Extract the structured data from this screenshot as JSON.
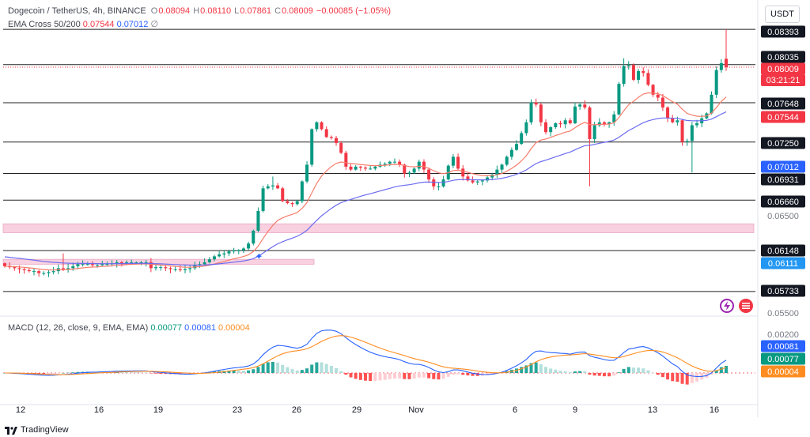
{
  "header": {
    "symbol": "Dogecoin / TetherUS, 4h, BINANCE",
    "o_label": "O",
    "o_val": "0.08094",
    "h_label": "H",
    "h_val": "0.08110",
    "l_label": "L",
    "l_val": "0.07861",
    "c_label": "C",
    "c_val": "0.08009",
    "change": "−0.00085 (−1.05%)",
    "ema_label": "EMA Cross 50/200",
    "ema_fast": "0.07544",
    "ema_slow": "0.07012",
    "ema_extra": "∅"
  },
  "currency_button": "USDT",
  "macd_header": {
    "label": "MACD (12, 26, close, 9, EMA, EMA)",
    "hist": "0.00077",
    "macd": "0.00081",
    "signal": "0.00004"
  },
  "brand": "TradingView",
  "colors": {
    "up": "#089981",
    "down": "#f23645",
    "ema_fast": "#f77c6b",
    "ema_slow": "#6b6bf0",
    "zone": "#f8d0e0",
    "macd": "#2962ff",
    "signal": "#ff8c21"
  },
  "icons": [
    "lightning-icon",
    "flag-icon",
    "tradingview-logo-icon"
  ],
  "chart_data": [
    {
      "type": "candlestick",
      "title": "Dogecoin / TetherUS, 4h, BINANCE",
      "x_tick_labels": [
        "12",
        "16",
        "19",
        "23",
        "26",
        "29",
        "Nov",
        "6",
        "9",
        "13",
        "16"
      ],
      "y_tick_labels": [
        "0.08393",
        "0.08035",
        "0.08009",
        "0.07648",
        "0.07544",
        "0.07250",
        "0.07012",
        "0.06931",
        "0.06660",
        "0.06500",
        "0.06148",
        "0.06111",
        "0.05733",
        "0.05500"
      ],
      "ylim": [
        0.055,
        0.0845
      ],
      "horizontal_levels": [
        0.08393,
        0.08035,
        0.07648,
        0.0725,
        0.06931,
        0.0666,
        0.06148,
        0.05733
      ],
      "zones": [
        [
          0.0633,
          0.0642
        ],
        [
          0.0601,
          0.0606
        ]
      ],
      "last_price": 0.08009,
      "countdown": "03:21:21",
      "closes": [
        0.0599,
        0.0598,
        0.0597,
        0.0596,
        0.0595,
        0.0594,
        0.0594,
        0.0592,
        0.0592,
        0.0593,
        0.0594,
        0.0597,
        0.0596,
        0.0597,
        0.0599,
        0.0601,
        0.0601,
        0.0601,
        0.06,
        0.06,
        0.0601,
        0.0601,
        0.0602,
        0.0603,
        0.0602,
        0.0603,
        0.0603,
        0.0603,
        0.0603,
        0.0603,
        0.0597,
        0.0598,
        0.0598,
        0.0597,
        0.0596,
        0.0596,
        0.0595,
        0.0596,
        0.0597,
        0.06,
        0.0601,
        0.0603,
        0.0606,
        0.0609,
        0.0611,
        0.0612,
        0.0614,
        0.0615,
        0.0615,
        0.0617,
        0.0622,
        0.0635,
        0.0655,
        0.0678,
        0.068,
        0.0681,
        0.0678,
        0.0665,
        0.0663,
        0.0662,
        0.0665,
        0.0685,
        0.0702,
        0.0738,
        0.0745,
        0.0738,
        0.073,
        0.0729,
        0.0724,
        0.0714,
        0.07,
        0.0697,
        0.07,
        0.0699,
        0.0698,
        0.0698,
        0.07,
        0.0702,
        0.0703,
        0.0705,
        0.0705,
        0.0702,
        0.0693,
        0.0694,
        0.0698,
        0.0705,
        0.0697,
        0.0687,
        0.068,
        0.068,
        0.0687,
        0.0701,
        0.071,
        0.0698,
        0.069,
        0.0686,
        0.0684,
        0.0685,
        0.0686,
        0.0689,
        0.0692,
        0.0697,
        0.0702,
        0.071,
        0.0717,
        0.0723,
        0.0734,
        0.0745,
        0.0765,
        0.0763,
        0.0745,
        0.0735,
        0.074,
        0.0744,
        0.0743,
        0.0747,
        0.0744,
        0.0761,
        0.0763,
        0.076,
        0.0728,
        0.0742,
        0.0745,
        0.0743,
        0.0745,
        0.0753,
        0.0784,
        0.0802,
        0.0803,
        0.0788,
        0.0797,
        0.0795,
        0.0783,
        0.0773,
        0.077,
        0.076,
        0.0749,
        0.0745,
        0.0747,
        0.0725,
        0.0726,
        0.0742,
        0.0744,
        0.0749,
        0.0754,
        0.0773,
        0.0798,
        0.0805,
        0.0801
      ]
    },
    {
      "type": "line",
      "title": "MACD (12, 26, close, 9, EMA, EMA)",
      "y_tick_labels": [
        "0.00200",
        "0.00081",
        "0.00077",
        "0.00004"
      ],
      "series": [
        {
          "name": "MACD",
          "last": 0.00081
        },
        {
          "name": "Signal",
          "last": 4e-05
        },
        {
          "name": "Histogram",
          "last": 0.00077
        }
      ]
    }
  ]
}
